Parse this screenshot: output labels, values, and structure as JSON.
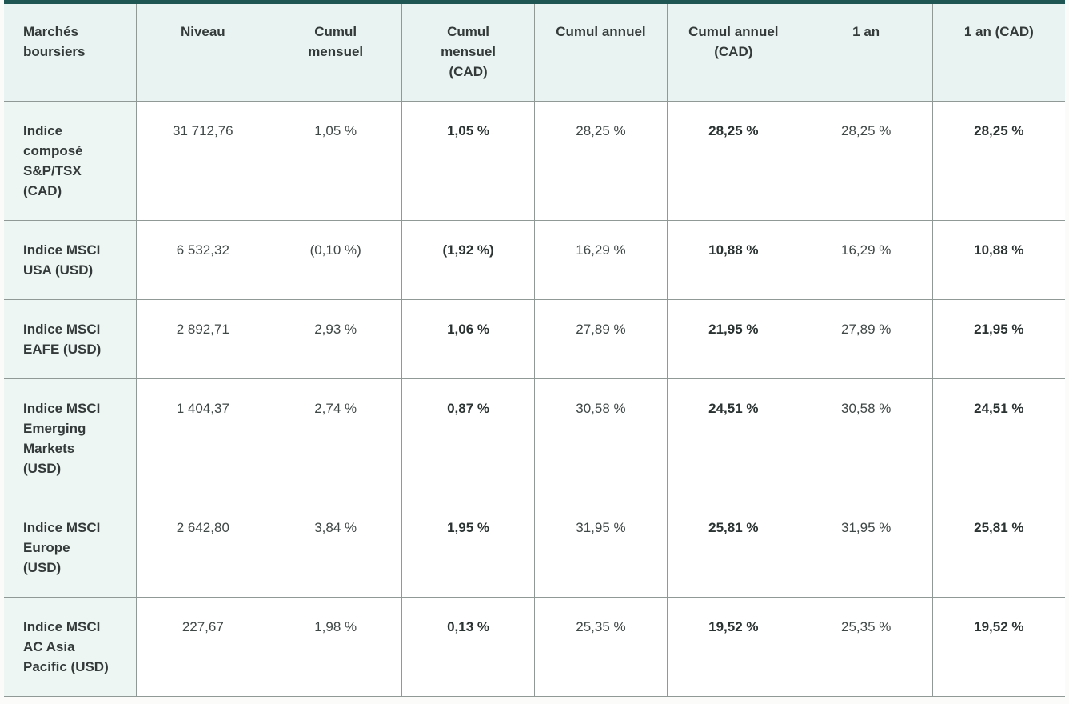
{
  "colors": {
    "top_border": "#1f5654",
    "header_bg": "#e9f3f1",
    "label_bg": "#eef6f4",
    "inner_border": "#919997",
    "light_border": "#d9dedd",
    "page_bg": "#fbfbfa",
    "header_text": "#333a39",
    "cell_text": "#404847",
    "bold_text": "#2b3232"
  },
  "chart_data": {
    "type": "table",
    "title": "Marchés boursiers",
    "columns": [
      {
        "label": "Marchés boursiers",
        "bold": false
      },
      {
        "label": "Niveau",
        "bold": false
      },
      {
        "label": "Cumul mensuel",
        "bold": false
      },
      {
        "label": "Cumul mensuel (CAD)",
        "bold": true
      },
      {
        "label": "Cumul annuel",
        "bold": false
      },
      {
        "label": "Cumul annuel (CAD)",
        "bold": true
      },
      {
        "label": "1 an",
        "bold": false
      },
      {
        "label": "1 an (CAD)",
        "bold": true
      }
    ],
    "rows": [
      {
        "label": "Indice composé S&P/TSX (CAD)",
        "values": [
          "31 712,76",
          "1,05 %",
          "1,05 %",
          "28,25 %",
          "28,25 %",
          "28,25 %",
          "28,25 %"
        ]
      },
      {
        "label": "Indice MSCI USA (USD)",
        "values": [
          "6 532,32",
          "(0,10 %)",
          "(1,92 %)",
          "16,29 %",
          "10,88 %",
          "16,29 %",
          "10,88 %"
        ]
      },
      {
        "label": "Indice MSCI EAFE (USD)",
        "values": [
          "2 892,71",
          "2,93 %",
          "1,06 %",
          "27,89 %",
          "21,95 %",
          "27,89 %",
          "21,95 %"
        ]
      },
      {
        "label": "Indice MSCI Emerging Markets (USD)",
        "values": [
          "1 404,37",
          "2,74 %",
          "0,87 %",
          "30,58 %",
          "24,51 %",
          "30,58 %",
          "24,51 %"
        ]
      },
      {
        "label": "Indice MSCI Europe (USD)",
        "values": [
          "2 642,80",
          "3,84 %",
          "1,95 %",
          "31,95 %",
          "25,81 %",
          "31,95 %",
          "25,81 %"
        ]
      },
      {
        "label": "Indice MSCI AC Asia Pacific (USD)",
        "values": [
          "227,67",
          "1,98 %",
          "0,13 %",
          "25,35 %",
          "19,52 %",
          "25,35 %",
          "19,52 %"
        ]
      }
    ]
  }
}
